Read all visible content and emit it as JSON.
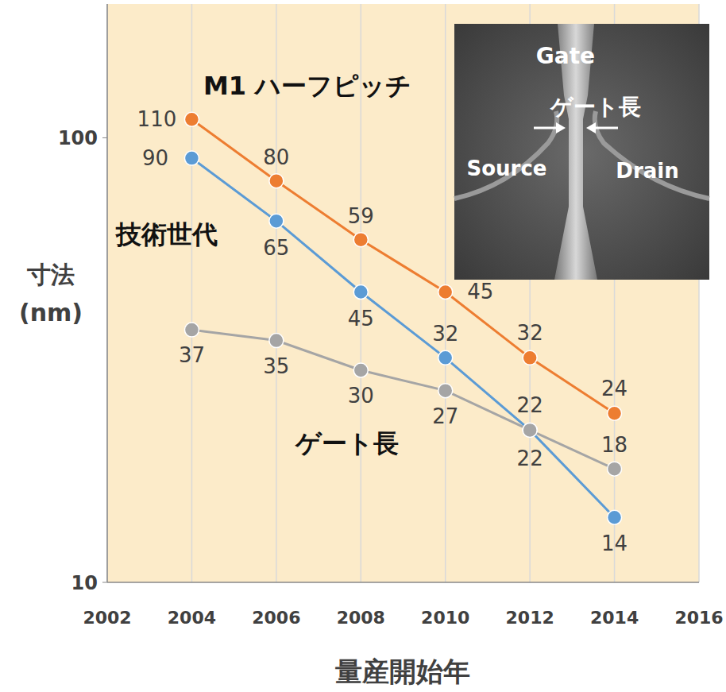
{
  "chart_data": {
    "type": "line",
    "x": [
      2004,
      2006,
      2008,
      2010,
      2012,
      2014
    ],
    "series": [
      {
        "name": "M1 ハーフピッチ",
        "color": "#ED7D31",
        "marker": "circle",
        "values": [
          110,
          80,
          59,
          45,
          32,
          24
        ]
      },
      {
        "name": "技術世代",
        "color": "#5B9BD5",
        "marker": "circle",
        "values": [
          90,
          65,
          45,
          32,
          22,
          14
        ]
      },
      {
        "name": "ゲート長",
        "color": "#A5A5A5",
        "marker": "circle",
        "values": [
          37,
          35,
          30,
          27,
          22,
          18
        ]
      }
    ],
    "x_label": "量産開始年",
    "y_label": "寸法 (nm)",
    "xlim": [
      2002,
      2016
    ],
    "xticks": [
      2002,
      2004,
      2006,
      2008,
      2010,
      2012,
      2014,
      2016
    ],
    "ylim": [
      10,
      200
    ],
    "yticks": [
      10,
      100
    ],
    "log": "y",
    "grid": true,
    "data_labels": true,
    "inset": {
      "labels": [
        "Gate",
        "ゲート長",
        "Source",
        "Drain"
      ]
    }
  }
}
